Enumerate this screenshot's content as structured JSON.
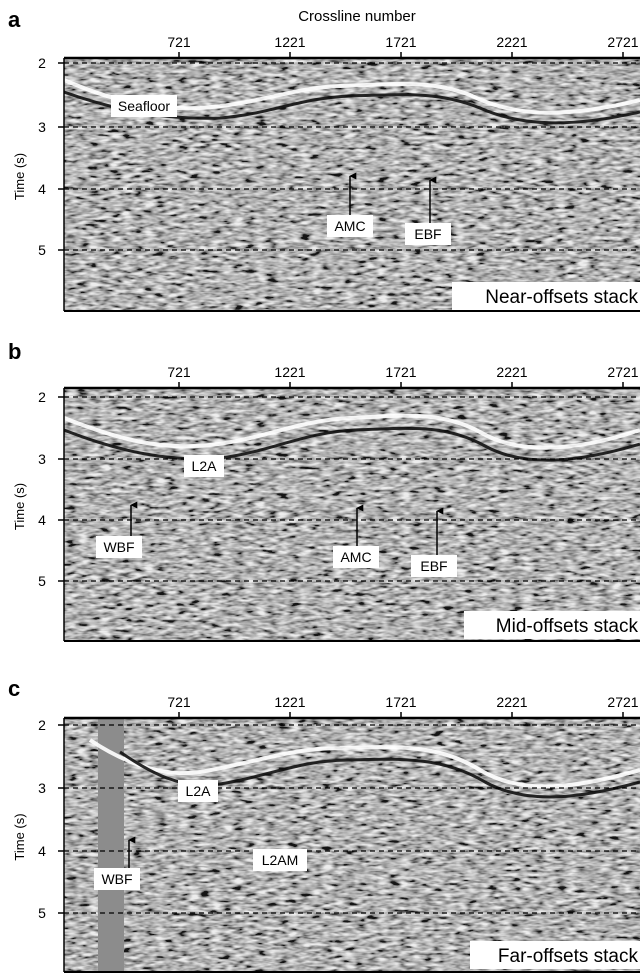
{
  "chart_data": [
    {
      "type": "seismic-section",
      "panel_letter": "a",
      "panel_title": "Near-offsets stack",
      "xlabel": "Crossline number",
      "ylabel": "Time (s)",
      "x_ticks": [
        721,
        1221,
        1721,
        2221,
        2721
      ],
      "y_ticks": [
        2,
        3,
        4,
        5
      ],
      "dashed_time_lines": [
        2,
        3,
        4,
        5
      ],
      "annotations": [
        {
          "label": "Seafloor",
          "arrow": false
        },
        {
          "label": "AMC",
          "arrow": true
        },
        {
          "label": "EBF",
          "arrow": true
        }
      ],
      "image_colormap": "grayscale"
    },
    {
      "type": "seismic-section",
      "panel_letter": "b",
      "panel_title": "Mid-offsets stack",
      "xlabel": "",
      "ylabel": "Time (s)",
      "x_ticks": [
        721,
        1221,
        1721,
        2221,
        2721
      ],
      "y_ticks": [
        2,
        3,
        4,
        5
      ],
      "dashed_time_lines": [
        2,
        3,
        4,
        5
      ],
      "annotations": [
        {
          "label": "L2A",
          "arrow": false
        },
        {
          "label": "WBF",
          "arrow": true
        },
        {
          "label": "AMC",
          "arrow": true
        },
        {
          "label": "EBF",
          "arrow": true
        }
      ],
      "image_colormap": "grayscale"
    },
    {
      "type": "seismic-section",
      "panel_letter": "c",
      "panel_title": "Far-offsets stack",
      "xlabel": "",
      "ylabel": "Time (s)",
      "x_ticks": [
        721,
        1221,
        1721,
        2221,
        2721
      ],
      "y_ticks": [
        2,
        3,
        4,
        5
      ],
      "dashed_time_lines": [
        2,
        3,
        4,
        5
      ],
      "annotations": [
        {
          "label": "L2A",
          "arrow": false
        },
        {
          "label": "WBF",
          "arrow": true
        },
        {
          "label": "L2AM",
          "arrow": false
        }
      ],
      "image_colormap": "grayscale"
    }
  ],
  "colors": {
    "seismic_background": "#8a8a8a",
    "axis": "#000000",
    "label_box": "#ffffff"
  }
}
